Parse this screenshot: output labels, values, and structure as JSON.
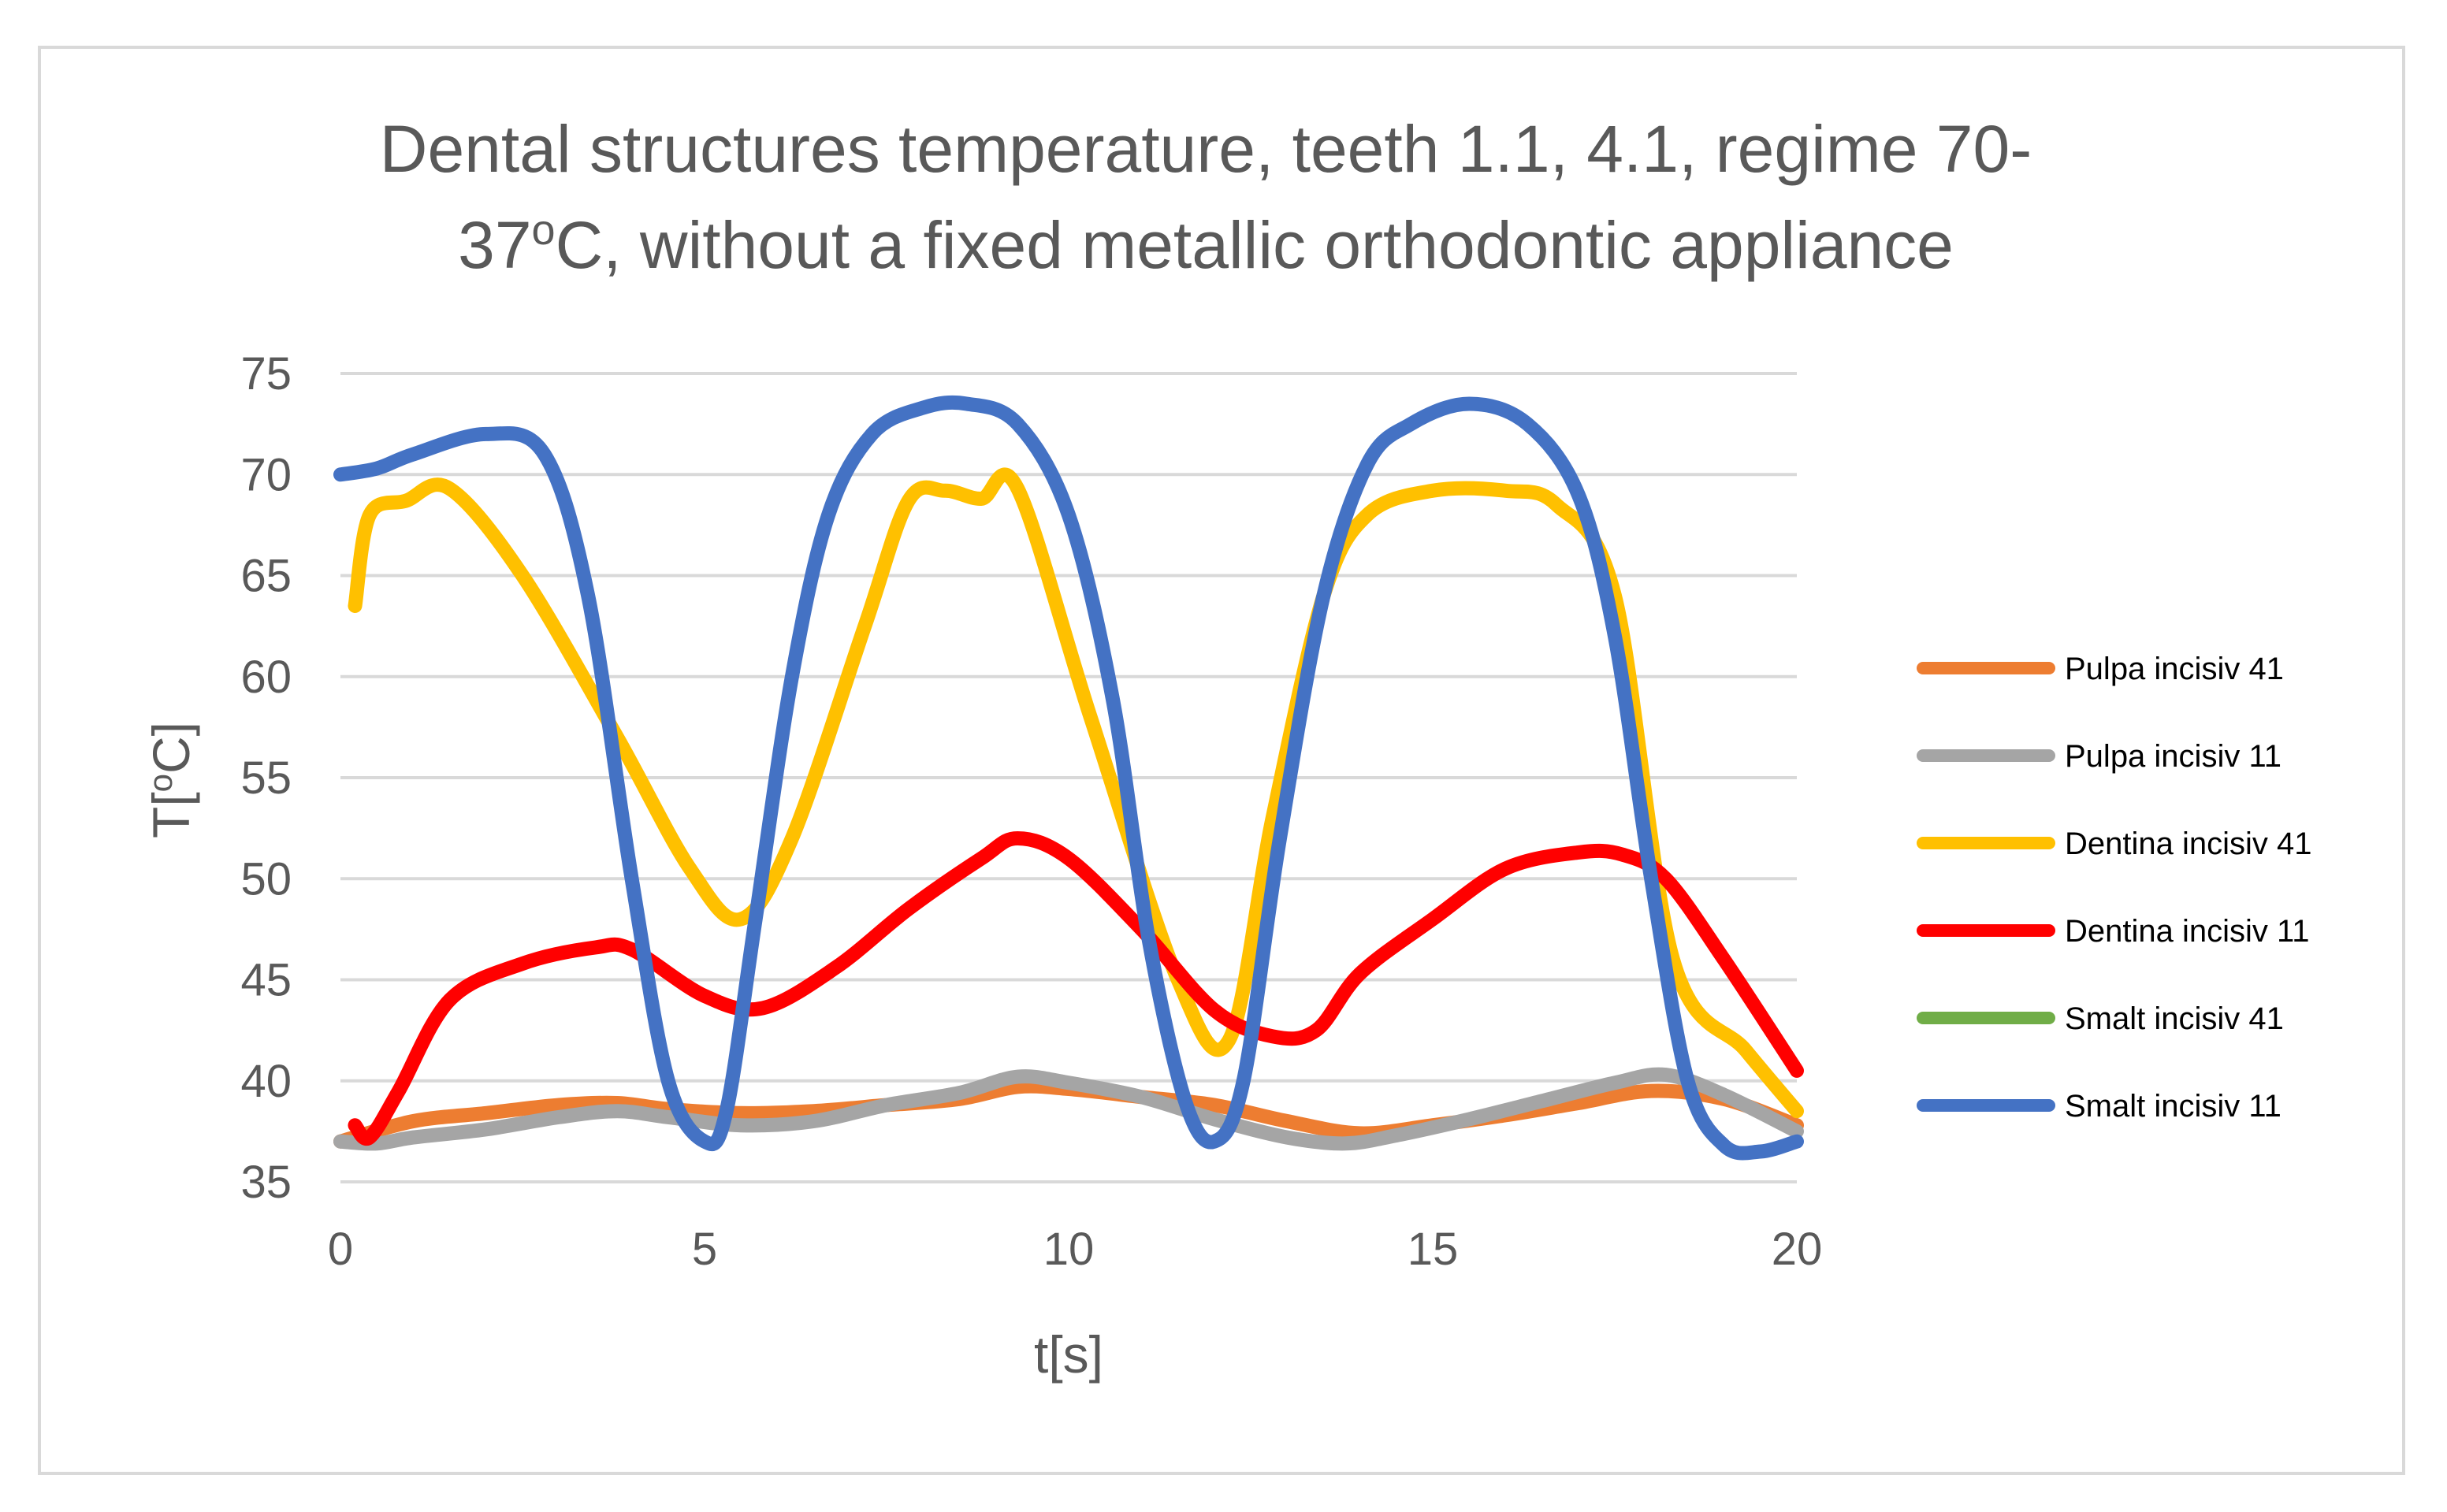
{
  "chart_data": {
    "type": "line",
    "title_line1": "Dental structures temperature, teeth 1.1, 4.1, regime 70-",
    "title_line2_prefix": "37",
    "title_line2_sup": "o",
    "title_line2_suffix": "C, without a fixed metallic orthodontic appliance",
    "xlabel": "t[s]",
    "ylabel_prefix": "T[",
    "ylabel_sup": "o",
    "ylabel_suffix": "C]",
    "xlim": [
      0,
      20
    ],
    "ylim": [
      35,
      75
    ],
    "x_ticks": [
      0,
      5,
      10,
      15,
      20
    ],
    "y_ticks": [
      35,
      40,
      45,
      50,
      55,
      60,
      65,
      70,
      75
    ],
    "grid": true,
    "legend_position": "right",
    "series": [
      {
        "name": "Pulpa incisiv 41",
        "color": "#ED7D31",
        "x": [
          0,
          1,
          2,
          3,
          3.8,
          4.5,
          5.5,
          6.5,
          7.5,
          8.5,
          9.3,
          10,
          11,
          12,
          13,
          14,
          15,
          16,
          17,
          18,
          19,
          20
        ],
        "y": [
          37,
          38,
          38.4,
          38.8,
          38.9,
          38.6,
          38.4,
          38.5,
          38.8,
          39.1,
          39.7,
          39.6,
          39.2,
          38.8,
          38,
          37.4,
          37.8,
          38.3,
          38.9,
          39.5,
          39.1,
          37.8
        ]
      },
      {
        "name": "Pulpa incisiv 11",
        "color": "#A5A5A5",
        "x": [
          0,
          0.5,
          1,
          2,
          3,
          3.8,
          4.5,
          5.5,
          6.5,
          7.5,
          8.5,
          9.3,
          10,
          11,
          12,
          13,
          13.8,
          14.5,
          15.5,
          16.5,
          17.5,
          18.2,
          19,
          20
        ],
        "y": [
          37,
          36.9,
          37.2,
          37.6,
          38.2,
          38.5,
          38.2,
          37.8,
          38,
          38.8,
          39.4,
          40.2,
          39.9,
          39.2,
          38.1,
          37.2,
          36.9,
          37.3,
          38.1,
          39,
          39.9,
          40.3,
          39.3,
          37.5
        ]
      },
      {
        "name": "Dentina incisiv 41",
        "color": "#FFC000",
        "x": [
          0.2,
          0.4,
          0.9,
          1.5,
          2.5,
          3.8,
          4.8,
          5.5,
          6.2,
          7.2,
          7.8,
          8.3,
          8.8,
          9.3,
          10.3,
          11.5,
          12.2,
          12.8,
          13.5,
          14.1,
          15,
          16,
          16.7,
          17.5,
          18.3,
          19.3,
          20
        ],
        "y": [
          63.5,
          68,
          68.7,
          69.3,
          65,
          57,
          50.5,
          48,
          52,
          62.5,
          68.7,
          69.2,
          68.8,
          69.3,
          58,
          45,
          42,
          53,
          64,
          68,
          69.2,
          69.2,
          68.5,
          64,
          46,
          41.5,
          38.5
        ]
      },
      {
        "name": "Dentina incisiv 11",
        "color": "#FF0000",
        "x": [
          0.2,
          0.4,
          0.8,
          1.5,
          2.5,
          3.5,
          4,
          5,
          5.8,
          6.8,
          7.8,
          8.8,
          9.3,
          10,
          11,
          12,
          12.8,
          13.4,
          14,
          15,
          16,
          17,
          17.6,
          18.2,
          19,
          20
        ],
        "y": [
          37.8,
          37.2,
          39.5,
          44,
          45.8,
          46.6,
          46.5,
          44.2,
          43.6,
          45.6,
          48.5,
          51,
          52,
          51,
          47.5,
          43.5,
          42.2,
          42.5,
          45.3,
          48,
          50.5,
          51.3,
          51.2,
          50,
          46,
          40.5
        ]
      },
      {
        "name": "Smalt incisiv 41",
        "color": "#70AD47",
        "x": [],
        "y": []
      },
      {
        "name": "Smalt incisiv 11",
        "color": "#4472C4",
        "x": [
          0,
          0.5,
          1,
          2,
          2.8,
          3.4,
          4,
          4.5,
          5,
          5.3,
          5.7,
          6.2,
          6.7,
          7.3,
          8,
          8.6,
          9.3,
          10,
          10.6,
          11.1,
          11.6,
          12,
          12.4,
          12.9,
          13.5,
          14.1,
          14.7,
          15.5,
          16.3,
          17,
          17.5,
          18,
          18.5,
          19,
          19.5,
          20
        ],
        "y": [
          70,
          70.3,
          71,
          72,
          71,
          64,
          50,
          40,
          37,
          38.5,
          48,
          60,
          68,
          72,
          73.3,
          73.5,
          72.5,
          68,
          59,
          47,
          39,
          37,
          40,
          52,
          64,
          70.5,
          72.5,
          73.5,
          72.5,
          69,
          62,
          50,
          40,
          36.8,
          36.5,
          37
        ]
      }
    ]
  }
}
